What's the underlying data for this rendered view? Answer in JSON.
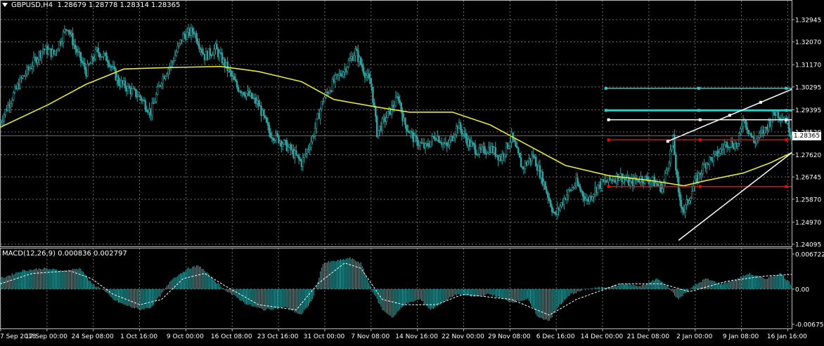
{
  "chart_data": [
    {
      "type": "candlestick",
      "title": "GBPUSD,H4",
      "ohlc_label": "1.28679 1.28778 1.28314 1.28365",
      "last_price_label": "1.28365",
      "last_price": 1.28365,
      "y_ticks": [
        {
          "value": 1.32945,
          "label": "1.32945"
        },
        {
          "value": 1.3207,
          "label": "1.32070"
        },
        {
          "value": 1.3117,
          "label": "1.31170"
        },
        {
          "value": 1.30295,
          "label": "1.30295"
        },
        {
          "value": 1.29395,
          "label": "1.29395"
        },
        {
          "value": 1.2852,
          "label": "1.28520"
        },
        {
          "value": 1.2762,
          "label": "1.27620"
        },
        {
          "value": 1.26745,
          "label": "1.26745"
        },
        {
          "value": 1.2587,
          "label": "1.25870"
        },
        {
          "value": 1.2497,
          "label": "1.24970"
        },
        {
          "value": 1.24095,
          "label": "1.24095"
        }
      ],
      "x_tick_labels": [
        "7 Sep 2018",
        "17 Sep 00:00",
        "24 Sep 08:00",
        "1 Oct 16:00",
        "9 Oct 00:00",
        "16 Oct 08:00",
        "23 Oct 16:00",
        "31 Oct 00:00",
        "7 Nov 08:00",
        "14 Nov 16:00",
        "22 Nov 00:00",
        "29 Nov 08:00",
        "6 Dec 16:00",
        "14 Dec 00:00",
        "21 Dec 08:00",
        "2 Jan 00:00",
        "9 Jan 08:00",
        "16 Jan 16:00"
      ],
      "close_path": [
        {
          "x": 0,
          "y": 1.289
        },
        {
          "x": 4,
          "y": 1.298
        },
        {
          "x": 8,
          "y": 1.306
        },
        {
          "x": 12,
          "y": 1.312
        },
        {
          "x": 16,
          "y": 1.318
        },
        {
          "x": 20,
          "y": 1.316
        },
        {
          "x": 25,
          "y": 1.327
        },
        {
          "x": 28,
          "y": 1.318
        },
        {
          "x": 32,
          "y": 1.309
        },
        {
          "x": 36,
          "y": 1.317
        },
        {
          "x": 40,
          "y": 1.314
        },
        {
          "x": 44,
          "y": 1.305
        },
        {
          "x": 48,
          "y": 1.302
        },
        {
          "x": 52,
          "y": 1.299
        },
        {
          "x": 56,
          "y": 1.293
        },
        {
          "x": 60,
          "y": 1.306
        },
        {
          "x": 64,
          "y": 1.313
        },
        {
          "x": 68,
          "y": 1.323
        },
        {
          "x": 72,
          "y": 1.325
        },
        {
          "x": 76,
          "y": 1.315
        },
        {
          "x": 80,
          "y": 1.318
        },
        {
          "x": 84,
          "y": 1.311
        },
        {
          "x": 88,
          "y": 1.303
        },
        {
          "x": 92,
          "y": 1.3
        },
        {
          "x": 96,
          "y": 1.296
        },
        {
          "x": 100,
          "y": 1.285
        },
        {
          "x": 104,
          "y": 1.282
        },
        {
          "x": 108,
          "y": 1.278
        },
        {
          "x": 112,
          "y": 1.273
        },
        {
          "x": 116,
          "y": 1.283
        },
        {
          "x": 120,
          "y": 1.298
        },
        {
          "x": 124,
          "y": 1.305
        },
        {
          "x": 128,
          "y": 1.31
        },
        {
          "x": 132,
          "y": 1.317
        },
        {
          "x": 134,
          "y": 1.312
        },
        {
          "x": 138,
          "y": 1.303
        },
        {
          "x": 140,
          "y": 1.285
        },
        {
          "x": 144,
          "y": 1.292
        },
        {
          "x": 148,
          "y": 1.299
        },
        {
          "x": 150,
          "y": 1.289
        },
        {
          "x": 154,
          "y": 1.282
        },
        {
          "x": 158,
          "y": 1.279
        },
        {
          "x": 162,
          "y": 1.284
        },
        {
          "x": 166,
          "y": 1.279
        },
        {
          "x": 170,
          "y": 1.288
        },
        {
          "x": 174,
          "y": 1.281
        },
        {
          "x": 178,
          "y": 1.277
        },
        {
          "x": 182,
          "y": 1.279
        },
        {
          "x": 186,
          "y": 1.275
        },
        {
          "x": 190,
          "y": 1.283
        },
        {
          "x": 194,
          "y": 1.271
        },
        {
          "x": 198,
          "y": 1.276
        },
        {
          "x": 202,
          "y": 1.265
        },
        {
          "x": 206,
          "y": 1.252
        },
        {
          "x": 210,
          "y": 1.26
        },
        {
          "x": 214,
          "y": 1.265
        },
        {
          "x": 218,
          "y": 1.258
        },
        {
          "x": 222,
          "y": 1.264
        },
        {
          "x": 226,
          "y": 1.266
        },
        {
          "x": 230,
          "y": 1.268
        },
        {
          "x": 234,
          "y": 1.265
        },
        {
          "x": 238,
          "y": 1.267
        },
        {
          "x": 242,
          "y": 1.266
        },
        {
          "x": 246,
          "y": 1.263
        },
        {
          "x": 250,
          "y": 1.282
        },
        {
          "x": 252,
          "y": 1.26
        },
        {
          "x": 254,
          "y": 1.254
        },
        {
          "x": 258,
          "y": 1.265
        },
        {
          "x": 262,
          "y": 1.273
        },
        {
          "x": 266,
          "y": 1.276
        },
        {
          "x": 270,
          "y": 1.281
        },
        {
          "x": 274,
          "y": 1.28
        },
        {
          "x": 276,
          "y": 1.291
        },
        {
          "x": 280,
          "y": 1.281
        },
        {
          "x": 284,
          "y": 1.286
        },
        {
          "x": 288,
          "y": 1.293
        },
        {
          "x": 292,
          "y": 1.29
        },
        {
          "x": 294,
          "y": 1.2836
        }
      ],
      "moving_average": [
        {
          "x": 0,
          "y": 1.287
        },
        {
          "x": 18,
          "y": 1.296
        },
        {
          "x": 32,
          "y": 1.304
        },
        {
          "x": 46,
          "y": 1.31
        },
        {
          "x": 60,
          "y": 1.3105
        },
        {
          "x": 82,
          "y": 1.311
        },
        {
          "x": 96,
          "y": 1.309
        },
        {
          "x": 112,
          "y": 1.305
        },
        {
          "x": 124,
          "y": 1.298
        },
        {
          "x": 140,
          "y": 1.295
        },
        {
          "x": 152,
          "y": 1.293
        },
        {
          "x": 168,
          "y": 1.293
        },
        {
          "x": 182,
          "y": 1.288
        },
        {
          "x": 196,
          "y": 1.28
        },
        {
          "x": 210,
          "y": 1.272
        },
        {
          "x": 226,
          "y": 1.268
        },
        {
          "x": 242,
          "y": 1.266
        },
        {
          "x": 254,
          "y": 1.264
        },
        {
          "x": 262,
          "y": 1.266
        },
        {
          "x": 276,
          "y": 1.269
        },
        {
          "x": 286,
          "y": 1.273
        },
        {
          "x": 294,
          "y": 1.277
        }
      ],
      "horizontal_levels": [
        {
          "name": "cyan-level-upper",
          "y": 1.3024,
          "x_from": 225,
          "x_to": 294,
          "color": "#32c8c8"
        },
        {
          "name": "cyan-level-lower",
          "y": 1.2937,
          "x_from": 225,
          "x_to": 294,
          "color": "#32c8c8"
        },
        {
          "name": "white-level",
          "y": 1.29,
          "x_from": 226,
          "x_to": 294,
          "color": "#ffffff"
        },
        {
          "name": "red-level-upper",
          "y": 1.2821,
          "x_from": 226,
          "x_to": 294,
          "color": "#ff0000"
        },
        {
          "name": "red-level-lower",
          "y": 1.2637,
          "x_from": 226,
          "x_to": 294,
          "color": "#ff0000"
        }
      ],
      "channel_lines": [
        {
          "name": "channel-upper",
          "x1": 248,
          "y1": 1.2815,
          "x2": 294,
          "y2": 1.302,
          "color": "#ffffff"
        },
        {
          "name": "channel-lower",
          "x1": 252,
          "y1": 1.2425,
          "x2": 294,
          "y2": 1.277,
          "color": "#ffffff"
        }
      ],
      "colors": {
        "candles": "#32a0a0",
        "moving_average": "#e8e830",
        "grid": "#6e6e6e",
        "background": "#000000"
      },
      "grid": true
    },
    {
      "type": "bar",
      "title": "MACD(12,26,9) 0.000836 0.002797",
      "y_ticks": [
        {
          "value": 0.006722,
          "label": "0.006722"
        },
        {
          "value": 0.0,
          "label": "0.00"
        },
        {
          "value": -0.006756,
          "label": "-0.006756"
        }
      ],
      "histogram": [
        {
          "x": 0,
          "y": 0.002
        },
        {
          "x": 8,
          "y": 0.0035
        },
        {
          "x": 16,
          "y": 0.004
        },
        {
          "x": 24,
          "y": 0.0035
        },
        {
          "x": 30,
          "y": 0.004
        },
        {
          "x": 34,
          "y": 0.001
        },
        {
          "x": 38,
          "y": 0.0
        },
        {
          "x": 42,
          "y": -0.002
        },
        {
          "x": 46,
          "y": -0.003
        },
        {
          "x": 52,
          "y": -0.004
        },
        {
          "x": 56,
          "y": -0.0035
        },
        {
          "x": 60,
          "y": -0.001
        },
        {
          "x": 64,
          "y": 0.002
        },
        {
          "x": 70,
          "y": 0.004
        },
        {
          "x": 74,
          "y": 0.0045
        },
        {
          "x": 78,
          "y": 0.0025
        },
        {
          "x": 82,
          "y": 0.0005
        },
        {
          "x": 86,
          "y": -0.001
        },
        {
          "x": 92,
          "y": -0.003
        },
        {
          "x": 98,
          "y": -0.004
        },
        {
          "x": 106,
          "y": -0.0035
        },
        {
          "x": 112,
          "y": -0.005
        },
        {
          "x": 116,
          "y": -0.002
        },
        {
          "x": 120,
          "y": 0.005
        },
        {
          "x": 126,
          "y": 0.0055
        },
        {
          "x": 130,
          "y": 0.006
        },
        {
          "x": 134,
          "y": 0.005
        },
        {
          "x": 138,
          "y": 0.0
        },
        {
          "x": 142,
          "y": -0.004
        },
        {
          "x": 146,
          "y": -0.0055
        },
        {
          "x": 150,
          "y": -0.003
        },
        {
          "x": 156,
          "y": -0.002
        },
        {
          "x": 160,
          "y": -0.004
        },
        {
          "x": 166,
          "y": -0.002
        },
        {
          "x": 170,
          "y": -0.001
        },
        {
          "x": 176,
          "y": -0.0015
        },
        {
          "x": 182,
          "y": -0.001
        },
        {
          "x": 190,
          "y": -0.0025
        },
        {
          "x": 196,
          "y": -0.002
        },
        {
          "x": 200,
          "y": -0.0055
        },
        {
          "x": 204,
          "y": -0.006
        },
        {
          "x": 208,
          "y": -0.003
        },
        {
          "x": 212,
          "y": -0.001
        },
        {
          "x": 218,
          "y": 0.0
        },
        {
          "x": 226,
          "y": 0.0005
        },
        {
          "x": 232,
          "y": 0.001
        },
        {
          "x": 238,
          "y": 0.0005
        },
        {
          "x": 244,
          "y": 0.002
        },
        {
          "x": 248,
          "y": 0.0005
        },
        {
          "x": 252,
          "y": -0.002
        },
        {
          "x": 256,
          "y": 0.0
        },
        {
          "x": 262,
          "y": 0.002
        },
        {
          "x": 268,
          "y": 0.001
        },
        {
          "x": 274,
          "y": 0.002
        },
        {
          "x": 278,
          "y": 0.003
        },
        {
          "x": 284,
          "y": 0.002
        },
        {
          "x": 290,
          "y": 0.003
        },
        {
          "x": 294,
          "y": 0.0008
        }
      ],
      "signal": [
        {
          "x": 0,
          "y": 0.001
        },
        {
          "x": 12,
          "y": 0.003
        },
        {
          "x": 26,
          "y": 0.0035
        },
        {
          "x": 34,
          "y": 0.002
        },
        {
          "x": 42,
          "y": -0.001
        },
        {
          "x": 52,
          "y": -0.003
        },
        {
          "x": 60,
          "y": -0.002
        },
        {
          "x": 68,
          "y": 0.002
        },
        {
          "x": 76,
          "y": 0.003
        },
        {
          "x": 84,
          "y": 0.0005
        },
        {
          "x": 96,
          "y": -0.003
        },
        {
          "x": 110,
          "y": -0.004
        },
        {
          "x": 118,
          "y": 0.001
        },
        {
          "x": 128,
          "y": 0.005
        },
        {
          "x": 134,
          "y": 0.004
        },
        {
          "x": 142,
          "y": -0.002
        },
        {
          "x": 150,
          "y": -0.003
        },
        {
          "x": 162,
          "y": -0.003
        },
        {
          "x": 172,
          "y": -0.001
        },
        {
          "x": 190,
          "y": -0.002
        },
        {
          "x": 204,
          "y": -0.005
        },
        {
          "x": 214,
          "y": -0.002
        },
        {
          "x": 230,
          "y": 0.001
        },
        {
          "x": 246,
          "y": 0.001
        },
        {
          "x": 256,
          "y": -0.0005
        },
        {
          "x": 270,
          "y": 0.0015
        },
        {
          "x": 284,
          "y": 0.0025
        },
        {
          "x": 294,
          "y": 0.0028
        }
      ],
      "colors": {
        "histogram": "#32b4b4",
        "signal": "#ffffff"
      }
    }
  ]
}
